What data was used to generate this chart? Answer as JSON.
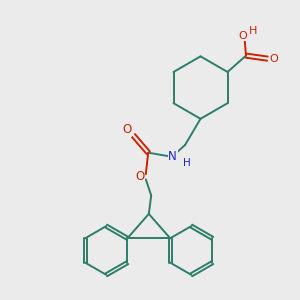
{
  "background_color": "#ebebeb",
  "bond_color": "#2d7d6b",
  "oxygen_color": "#cc2200",
  "nitrogen_color": "#2222cc",
  "figsize": [
    3.0,
    3.0
  ],
  "dpi": 100,
  "xlim": [
    0,
    10
  ],
  "ylim": [
    0,
    10
  ]
}
